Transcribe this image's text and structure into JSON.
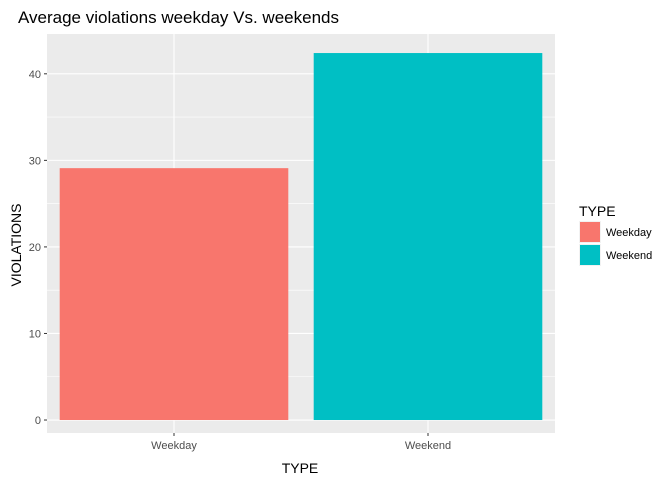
{
  "chart_data": {
    "type": "bar",
    "title": "Average violations weekday Vs. weekends",
    "xlabel": "TYPE",
    "ylabel": "VIOLATIONS",
    "categories": [
      "Weekday",
      "Weekend"
    ],
    "values": [
      29.1,
      42.4
    ],
    "colors": [
      "#f8766d",
      "#00bfc4"
    ],
    "ylim": [
      -1.5,
      44.6
    ],
    "yticks": [
      0,
      10,
      20,
      30,
      40
    ],
    "grid": true,
    "panel_background": "#ebebeb",
    "legend": {
      "title": "TYPE",
      "position": "right",
      "entries": [
        "Weekday",
        "Weekend"
      ]
    }
  }
}
